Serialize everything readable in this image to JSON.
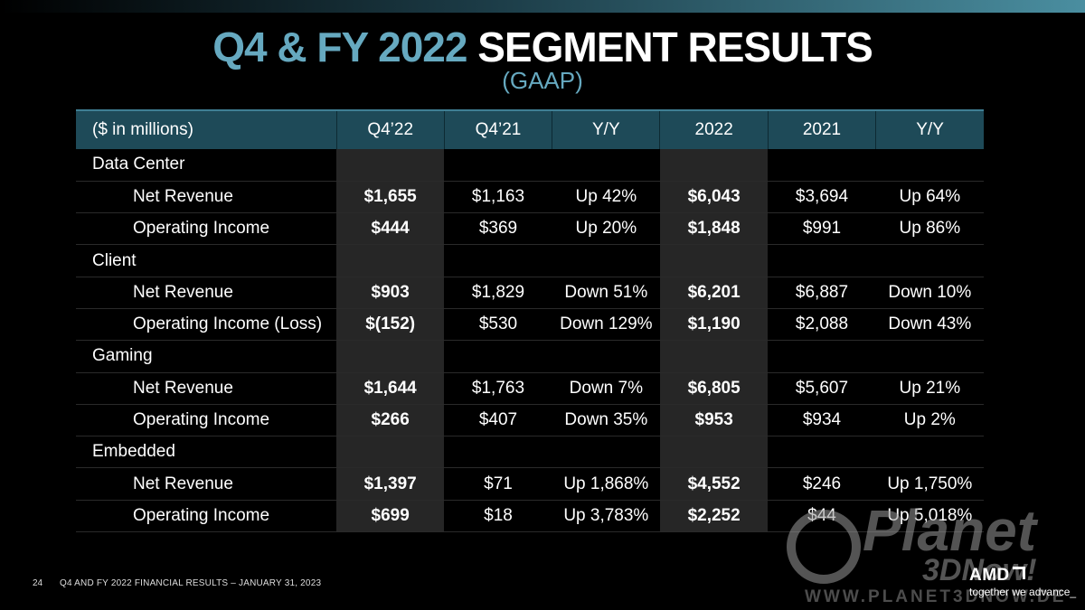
{
  "title": {
    "accent": "Q4 & FY 2022",
    "main": "SEGMENT RESULTS",
    "subtitle": "(GAAP)"
  },
  "table": {
    "headers": [
      "($ in millions)",
      "Q4’22",
      "Q4’21",
      "Y/Y",
      "2022",
      "2021",
      "Y/Y"
    ],
    "rows": [
      {
        "label": "Data Center",
        "cells": [
          "",
          "",
          "",
          "",
          "",
          ""
        ]
      },
      {
        "label": "Net Revenue",
        "cells": [
          "$1,655",
          "$1,163",
          "Up 42%",
          "$6,043",
          "$3,694",
          "Up 64%"
        ]
      },
      {
        "label": "Operating Income",
        "cells": [
          "$444",
          "$369",
          "Up 20%",
          "$1,848",
          "$991",
          "Up 86%"
        ]
      },
      {
        "label": "Client",
        "cells": [
          "",
          "",
          "",
          "",
          "",
          ""
        ]
      },
      {
        "label": "Net Revenue",
        "cells": [
          "$903",
          "$1,829",
          "Down 51%",
          "$6,201",
          "$6,887",
          "Down 10%"
        ]
      },
      {
        "label": "Operating Income (Loss)",
        "cells": [
          "$(152)",
          "$530",
          "Down 129%",
          "$1,190",
          "$2,088",
          "Down 43%"
        ]
      },
      {
        "label": "Gaming",
        "cells": [
          "",
          "",
          "",
          "",
          "",
          ""
        ]
      },
      {
        "label": "Net Revenue",
        "cells": [
          "$1,644",
          "$1,763",
          "Down 7%",
          "$6,805",
          "$5,607",
          "Up 21%"
        ]
      },
      {
        "label": "Operating Income",
        "cells": [
          "$266",
          "$407",
          "Down 35%",
          "$953",
          "$934",
          "Up 2%"
        ]
      },
      {
        "label": "Embedded",
        "cells": [
          "",
          "",
          "",
          "",
          "",
          ""
        ]
      },
      {
        "label": "Net Revenue",
        "cells": [
          "$1,397",
          "$71",
          "Up 1,868%",
          "$4,552",
          "$246",
          "Up 1,750%"
        ]
      },
      {
        "label": "Operating Income",
        "cells": [
          "$699",
          "$18",
          "Up 3,783%",
          "$2,252",
          "$44",
          "Up 5,018%"
        ]
      }
    ]
  },
  "footer": {
    "page": "24",
    "text": "Q4 AND FY 2022 FINANCIAL RESULTS – JANUARY 31, 2023"
  },
  "brand": {
    "logo": "AMD",
    "tagline": "together we advance_"
  },
  "watermark": {
    "name": "Planet",
    "sub": "3DNow!",
    "url": "WWW.PLANET3DNOW.DE"
  },
  "colors": {
    "accent": "#66a9c0",
    "header_bg": "#1e4a58",
    "highlight_col": "#262626"
  }
}
